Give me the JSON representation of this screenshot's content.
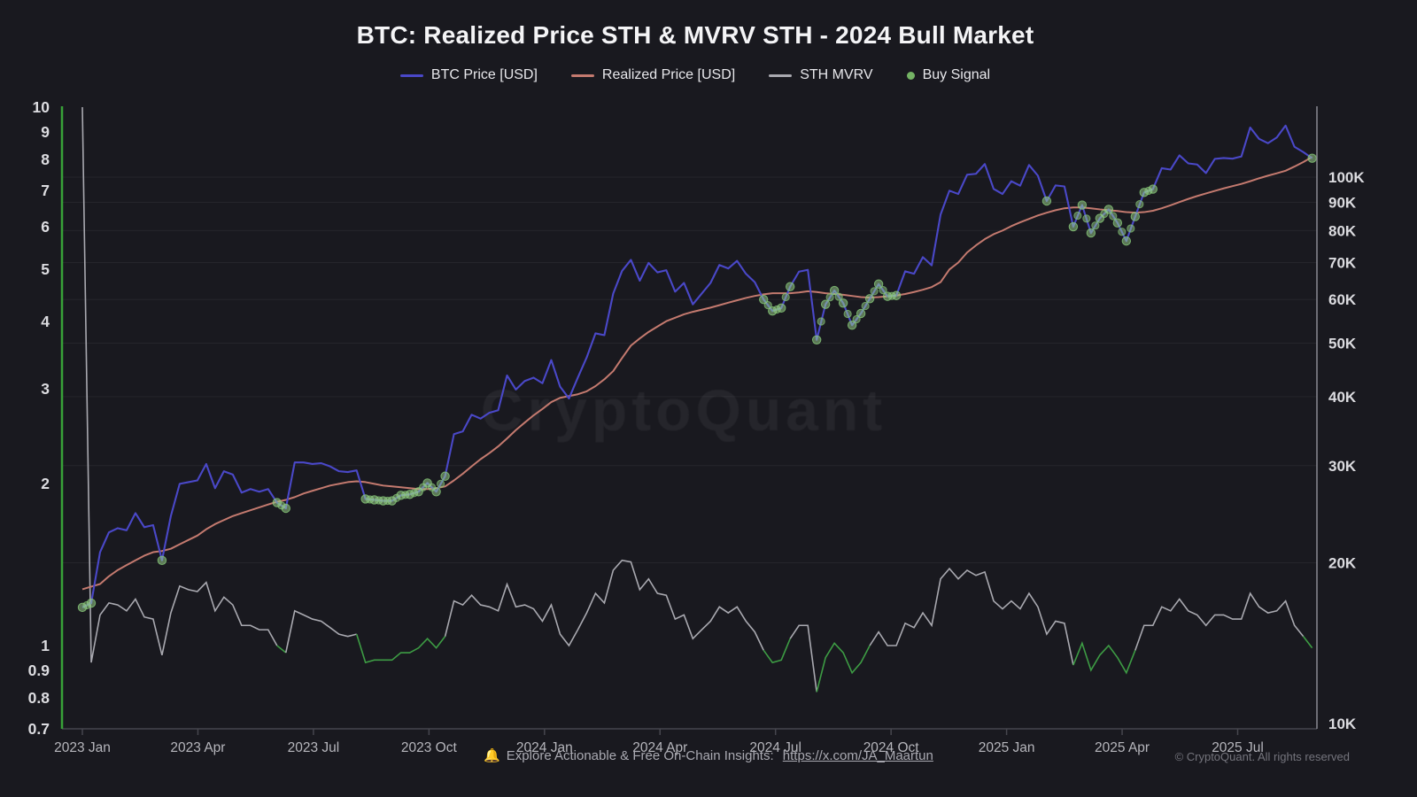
{
  "title": "BTC: Realized Price STH & MVRV STH - 2024 Bull Market",
  "watermark": "CryptoQuant",
  "legend": [
    {
      "label": "BTC Price [USD]",
      "type": "line",
      "color": "#4a48c8"
    },
    {
      "label": "Realized Price [USD]",
      "type": "line",
      "color": "#c47a6f"
    },
    {
      "label": "STH MVRV",
      "type": "line",
      "color": "#a9a9b0"
    },
    {
      "label": "Buy Signal",
      "type": "dot",
      "color": "#74b364"
    }
  ],
  "footer": {
    "bell_icon": "🔔",
    "message": "Explore Actionable & Free On-Chain Insights:",
    "link": "https://x.com/JA_Maartun",
    "copyright": "© CryptoQuant. All rights reserved"
  },
  "colors": {
    "background": "#19191f",
    "btc_price": "#4a48c8",
    "realized_price": "#c47a6f",
    "sth_mvrv": "#a9a9b0",
    "sth_mvrv_below_one": "#3d9c44",
    "buy_signal_fill": "#9fd88f",
    "buy_signal_stroke": "#82c474",
    "left_axis_line": "#38a138",
    "right_axis_line": "#8b8b93",
    "bottom_axis_line": "#46464e",
    "grid": "rgba(255,255,255,0.055)",
    "y_tick_text": "#dcdce0",
    "x_tick_text": "#b6b6bc"
  },
  "chart_data": {
    "type": "line",
    "x_start": "2023-01-01",
    "x_interval_days": 7,
    "x_tick_labels": [
      "2023 Jan",
      "2023 Apr",
      "2023 Jul",
      "2023 Oct",
      "2024 Jan",
      "2024 Apr",
      "2024 Jul",
      "2024 Oct",
      "2025 Jan",
      "2025 Apr",
      "2025 Jul"
    ],
    "left_axis": {
      "scale": "log",
      "ylim": [
        0.7,
        10
      ],
      "tick_labels": [
        "10",
        "9",
        "8",
        "7",
        "6",
        "5",
        "4",
        "3",
        "2",
        "1",
        "0.9",
        "0.8",
        "0.7"
      ],
      "tick_values": [
        10,
        9,
        8,
        7,
        6,
        5,
        4,
        3,
        2,
        1,
        0.9,
        0.8,
        0.7
      ],
      "series": "STH MVRV"
    },
    "right_axis": {
      "scale": "log",
      "unit": "USD",
      "tick_labels": [
        "100K",
        "90K",
        "80K",
        "70K",
        "60K",
        "50K",
        "40K",
        "30K",
        "20K",
        "10K"
      ],
      "tick_values_kusd": [
        100,
        90,
        80,
        70,
        60,
        50,
        40,
        30,
        20,
        10
      ]
    },
    "grid": "horizontal, at right-axis ticks",
    "legend_position": "top-center",
    "series": [
      {
        "name": "BTC Price [USD]",
        "axis": "right",
        "unit": "K USD",
        "color": "#4a48c8",
        "values": [
          16.6,
          16.9,
          20.9,
          22.7,
          23.1,
          22.9,
          24.6,
          23.2,
          23.4,
          20.2,
          24.3,
          27.8,
          28.0,
          28.2,
          30.2,
          27.3,
          29.3,
          28.9,
          26.8,
          27.2,
          26.9,
          27.2,
          25.7,
          25.1,
          30.4,
          30.4,
          30.2,
          30.3,
          29.9,
          29.3,
          29.2,
          29.4,
          26.1,
          26.0,
          25.9,
          25.9,
          26.5,
          26.6,
          26.9,
          27.9,
          26.9,
          28.7,
          34.2,
          34.6,
          37.1,
          36.5,
          37.4,
          37.8,
          43.7,
          41.2,
          42.7,
          43.3,
          42.3,
          46.6,
          41.7,
          39.7,
          43.3,
          47.1,
          52.1,
          51.7,
          61.5,
          67.6,
          70.8,
          64.9,
          69.9,
          67.2,
          67.8,
          62.0,
          64.3,
          58.8,
          61.5,
          64.3,
          69.3,
          68.3,
          70.5,
          66.8,
          64.5,
          60.0,
          57.2,
          57.9,
          63.3,
          67.4,
          67.9,
          50.7,
          58.8,
          62.3,
          59.1,
          53.9,
          56.6,
          60.2,
          64.0,
          60.8,
          61.0,
          67.5,
          66.8,
          71.6,
          69.2,
          85.5,
          94.5,
          93.2,
          101.0,
          101.4,
          105.6,
          95.2,
          93.2,
          98.3,
          96.5,
          105.2,
          100.6,
          90.5,
          96.6,
          96.2,
          81.3,
          89.0,
          79.2,
          84.2,
          87.4,
          82.6,
          76.6,
          84.8,
          93.8,
          95.1,
          103.8,
          103.2,
          109.5,
          105.9,
          105.4,
          101.7,
          107.9,
          108.3,
          108.0,
          109.0,
          123.0,
          117.3,
          115.2,
          118.0,
          124.0,
          113.5,
          111.0,
          108.2
        ]
      },
      {
        "name": "Realized Price [USD]",
        "axis": "right",
        "unit": "K USD",
        "color": "#c47a6f",
        "values": [
          17.9,
          18.1,
          18.3,
          18.9,
          19.4,
          19.8,
          20.2,
          20.6,
          20.9,
          21.0,
          21.2,
          21.6,
          22.0,
          22.4,
          23.0,
          23.5,
          23.9,
          24.3,
          24.6,
          24.9,
          25.2,
          25.5,
          25.8,
          26.0,
          26.3,
          26.7,
          27.0,
          27.3,
          27.6,
          27.8,
          28.0,
          28.1,
          28.0,
          27.8,
          27.6,
          27.5,
          27.4,
          27.3,
          27.2,
          27.2,
          27.3,
          27.5,
          28.2,
          29.0,
          29.9,
          30.8,
          31.6,
          32.5,
          33.6,
          34.8,
          35.9,
          37.0,
          38.0,
          39.1,
          39.8,
          40.1,
          40.4,
          40.9,
          41.8,
          43.0,
          44.5,
          47.0,
          49.5,
          51.0,
          52.4,
          53.6,
          54.8,
          55.6,
          56.4,
          57.0,
          57.5,
          58.0,
          58.6,
          59.2,
          59.8,
          60.4,
          60.9,
          61.3,
          61.6,
          61.6,
          61.6,
          61.8,
          62.1,
          61.9,
          61.6,
          61.4,
          61.2,
          60.9,
          60.6,
          60.5,
          60.6,
          60.8,
          61.0,
          61.4,
          61.9,
          62.5,
          63.2,
          64.5,
          68.0,
          70.0,
          73.0,
          75.2,
          77.2,
          78.8,
          80.0,
          81.5,
          82.8,
          84.0,
          85.2,
          86.2,
          87.1,
          87.8,
          88.1,
          88.1,
          87.8,
          87.4,
          87.1,
          86.8,
          86.4,
          86.2,
          86.4,
          86.9,
          87.8,
          88.9,
          90.1,
          91.3,
          92.4,
          93.4,
          94.4,
          95.4,
          96.3,
          97.2,
          98.3,
          99.5,
          100.6,
          101.6,
          102.7,
          104.5,
          106.5,
          108.8
        ]
      },
      {
        "name": "STH MVRV",
        "axis": "left",
        "unit": "ratio",
        "color": "#a9a9b0",
        "color_below_one": "#3d9c44",
        "note": "first value renders as the vertical start spike seen in the chart; STH MVRV = BTC Price / Realized Price",
        "values": [
          10,
          0.93,
          1.14,
          1.2,
          1.19,
          1.16,
          1.22,
          1.13,
          1.12,
          0.96,
          1.15,
          1.29,
          1.27,
          1.26,
          1.31,
          1.16,
          1.23,
          1.19,
          1.09,
          1.09,
          1.07,
          1.07,
          1.0,
          0.97,
          1.16,
          1.14,
          1.12,
          1.11,
          1.08,
          1.05,
          1.04,
          1.05,
          0.93,
          0.94,
          0.94,
          0.94,
          0.97,
          0.97,
          0.99,
          1.03,
          0.99,
          1.04,
          1.21,
          1.19,
          1.24,
          1.19,
          1.18,
          1.16,
          1.3,
          1.18,
          1.19,
          1.17,
          1.11,
          1.19,
          1.05,
          1.0,
          1.07,
          1.15,
          1.25,
          1.2,
          1.38,
          1.44,
          1.43,
          1.27,
          1.33,
          1.25,
          1.24,
          1.12,
          1.14,
          1.03,
          1.07,
          1.11,
          1.18,
          1.15,
          1.18,
          1.11,
          1.06,
          0.98,
          0.93,
          0.94,
          1.03,
          1.09,
          1.09,
          0.82,
          0.95,
          1.01,
          0.97,
          0.89,
          0.93,
          1.0,
          1.06,
          1.0,
          1.0,
          1.1,
          1.08,
          1.15,
          1.09,
          1.33,
          1.39,
          1.33,
          1.38,
          1.35,
          1.37,
          1.21,
          1.17,
          1.21,
          1.17,
          1.25,
          1.18,
          1.05,
          1.11,
          1.1,
          0.92,
          1.01,
          0.9,
          0.96,
          1.0,
          0.95,
          0.89,
          0.98,
          1.09,
          1.09,
          1.18,
          1.16,
          1.22,
          1.16,
          1.14,
          1.09,
          1.14,
          1.14,
          1.12,
          1.12,
          1.25,
          1.18,
          1.15,
          1.16,
          1.21,
          1.09,
          1.04,
          0.99
        ]
      }
    ],
    "buy_signals": {
      "name": "Buy Signal",
      "plotted_on": "BTC Price [USD]",
      "color": "#9fd88f",
      "week_indices": [
        0,
        1,
        9,
        22,
        23,
        32,
        33,
        34,
        35,
        36,
        37,
        38,
        39,
        40,
        41,
        77,
        78,
        79,
        80,
        83,
        84,
        85,
        86,
        87,
        88,
        89,
        90,
        91,
        92,
        109,
        112,
        113,
        114,
        115,
        116,
        117,
        118,
        119,
        120,
        121,
        139
      ]
    }
  }
}
